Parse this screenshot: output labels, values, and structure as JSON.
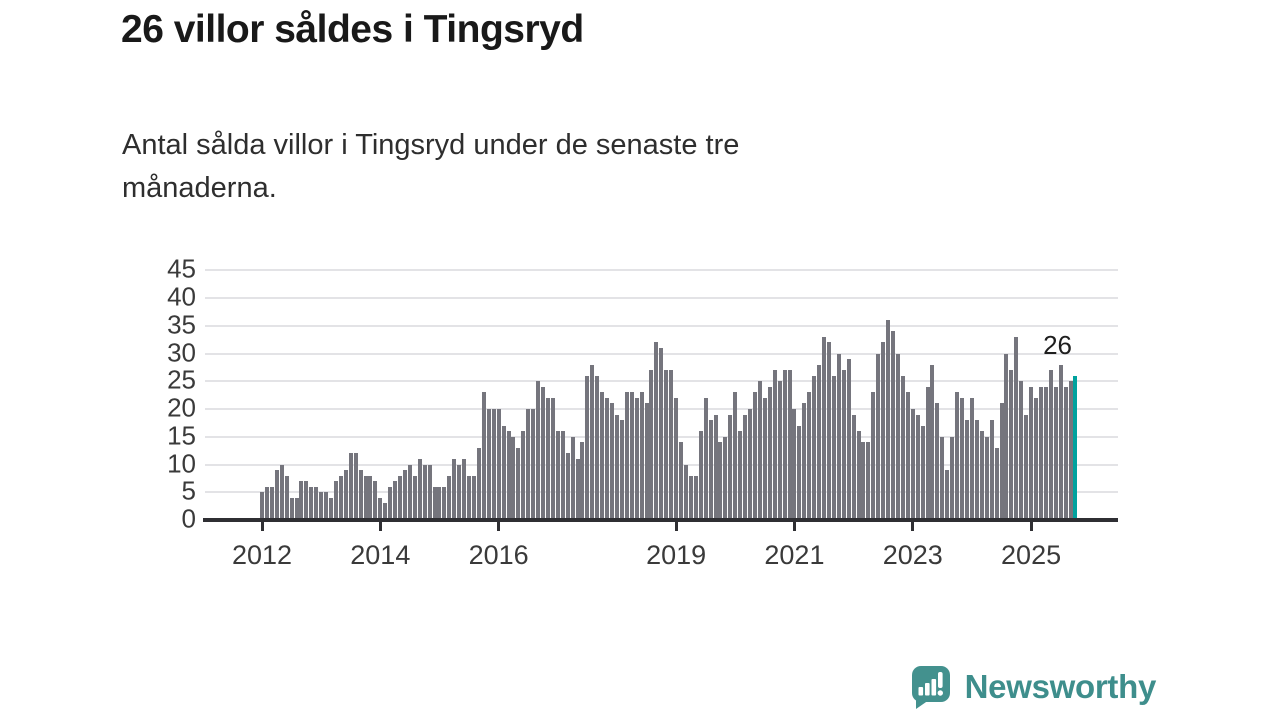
{
  "page": {
    "title": "26 villor såldes i Tingsryd",
    "subtitle": "Antal sålda villor i Tingsryd under de senaste tre\nmånaderna."
  },
  "chart_data": {
    "type": "bar",
    "title": "26 villor såldes i Tingsryd",
    "subtitle": "Antal sålda villor i Tingsryd under de senaste tre månaderna.",
    "unit": "antal sålda villor (rullande tre månader)",
    "x_start_month": "2012-01",
    "x_end_month": "2025-10",
    "x_tick_labels": [
      "2012",
      "2014",
      "2016",
      "2019",
      "2021",
      "2023",
      "2025"
    ],
    "x_tick_month_offsets": [
      0,
      24,
      48,
      84,
      108,
      132,
      156
    ],
    "y_ticks": [
      0,
      5,
      10,
      15,
      20,
      25,
      30,
      35,
      40,
      45
    ],
    "ylim": [
      0,
      45
    ],
    "grid": "horizontal",
    "legend": "none",
    "bar_color": "#75757d",
    "highlight_color": "#00a29e",
    "highlight_last_bar": true,
    "annotation": {
      "text": "26",
      "applies_to": "last-bar"
    },
    "values": [
      5,
      6,
      6,
      9,
      10,
      8,
      4,
      4,
      7,
      7,
      6,
      6,
      5,
      5,
      4,
      7,
      8,
      9,
      12,
      12,
      9,
      8,
      8,
      7,
      4,
      3,
      6,
      7,
      8,
      9,
      10,
      8,
      11,
      10,
      10,
      6,
      6,
      6,
      8,
      11,
      10,
      11,
      8,
      8,
      13,
      23,
      20,
      20,
      20,
      17,
      16,
      15,
      13,
      16,
      20,
      20,
      25,
      24,
      22,
      22,
      16,
      16,
      12,
      15,
      11,
      14,
      26,
      28,
      26,
      23,
      22,
      21,
      19,
      18,
      23,
      23,
      22,
      23,
      21,
      27,
      32,
      31,
      27,
      27,
      22,
      14,
      10,
      8,
      8,
      16,
      22,
      18,
      19,
      14,
      15,
      19,
      23,
      16,
      19,
      20,
      23,
      25,
      22,
      24,
      27,
      25,
      27,
      27,
      20,
      17,
      21,
      23,
      26,
      28,
      33,
      32,
      26,
      30,
      27,
      29,
      19,
      16,
      14,
      14,
      23,
      30,
      32,
      36,
      34,
      30,
      26,
      23,
      20,
      19,
      17,
      24,
      28,
      21,
      15,
      9,
      15,
      23,
      22,
      18,
      22,
      18,
      16,
      15,
      18,
      13,
      21,
      30,
      27,
      33,
      25,
      19,
      24,
      22,
      24,
      24,
      27,
      24,
      28,
      24,
      25,
      26
    ]
  },
  "branding": {
    "name": "Newsworthy",
    "color": "#3e8e8c",
    "icon": "speech-bubble-bar-chart-icon"
  }
}
